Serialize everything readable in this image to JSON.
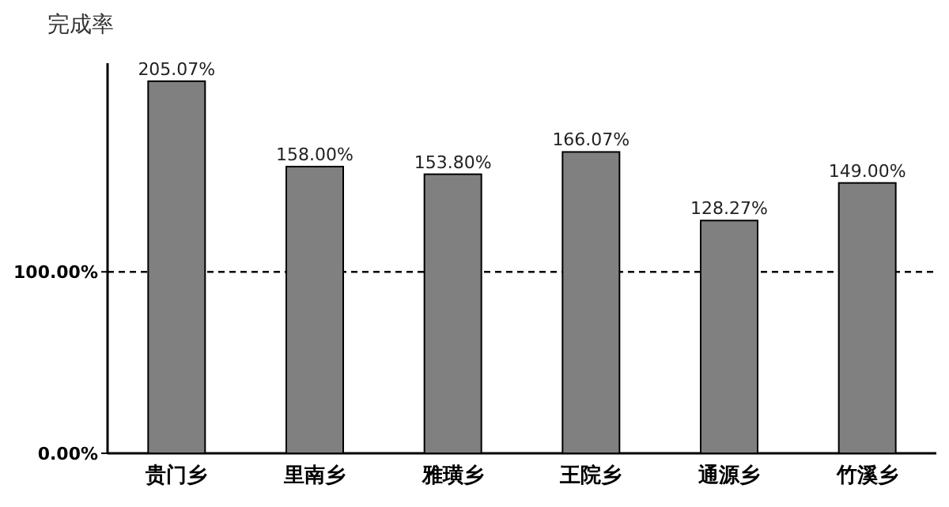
{
  "chart_data": {
    "type": "bar",
    "ylabel": "完成率",
    "categories": [
      "贵门乡",
      "里南乡",
      "雅璜乡",
      "王院乡",
      "通源乡",
      "竹溪乡"
    ],
    "values": [
      205.07,
      158.0,
      153.8,
      166.07,
      128.27,
      149.0
    ],
    "value_labels": [
      "205.07%",
      "158.00%",
      "153.80%",
      "166.07%",
      "128.27%",
      "149.00%"
    ],
    "color": "#808080",
    "ylim": [
      0,
      215
    ],
    "yticks": [
      {
        "value": 0,
        "label": "0.00%"
      },
      {
        "value": 100,
        "label": "100.00%"
      }
    ],
    "ref_lines": [
      {
        "axis": "y",
        "value": 100,
        "label": null,
        "line_style": "dashed",
        "color": "#000000"
      }
    ]
  }
}
